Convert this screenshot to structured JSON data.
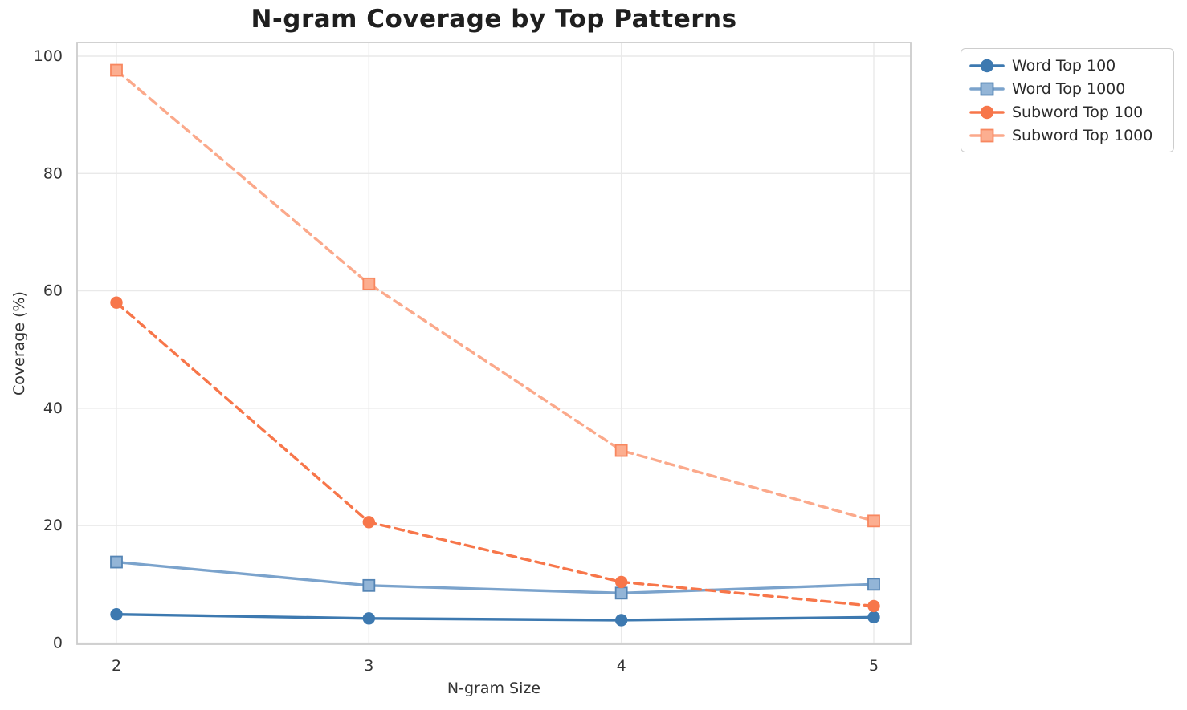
{
  "chart_data": {
    "type": "line",
    "title": "N-gram Coverage by Top Patterns",
    "xlabel": "N-gram Size",
    "ylabel": "Coverage (%)",
    "x": [
      2,
      3,
      4,
      5
    ],
    "xtick_labels": [
      "2",
      "3",
      "4",
      "5"
    ],
    "ytick_values": [
      0,
      20,
      40,
      60,
      80,
      100
    ],
    "ytick_labels": [
      "0",
      "20",
      "40",
      "60",
      "80",
      "100"
    ],
    "xlim": [
      1.84,
      5.15
    ],
    "ylim": [
      0,
      102.4
    ],
    "grid": true,
    "legend_position": "outside-upper-right",
    "colors": {
      "background": "#ffffff",
      "gridline": "#e9e9e9",
      "spine": "#cccccc",
      "title_text": "#1f1f1f",
      "tick_text": "#333333"
    },
    "series": [
      {
        "name": "Word Top 100",
        "values": [
          4.9,
          4.2,
          3.9,
          4.4
        ],
        "color": "#3d79b0",
        "marker": "circle",
        "marker_fill": "#3d79b0",
        "marker_edge": "#3d79b0",
        "line_style": "solid"
      },
      {
        "name": "Word Top 1000",
        "values": [
          13.8,
          9.8,
          8.5,
          10.0
        ],
        "color": "#7ba3cc",
        "marker": "square",
        "marker_fill": "#93b5d7",
        "marker_edge": "#5585b5",
        "line_style": "solid"
      },
      {
        "name": "Subword Top 100",
        "values": [
          58.0,
          20.6,
          10.4,
          6.3
        ],
        "color": "#f7764a",
        "marker": "circle",
        "marker_fill": "#f7764a",
        "marker_edge": "#f7764a",
        "line_style": "dashed"
      },
      {
        "name": "Subword Top 1000",
        "values": [
          97.6,
          61.2,
          32.8,
          20.8
        ],
        "color": "#fba98b",
        "marker": "square",
        "marker_fill": "#fcae90",
        "marker_edge": "#f8875f",
        "line_style": "dashed"
      }
    ]
  }
}
